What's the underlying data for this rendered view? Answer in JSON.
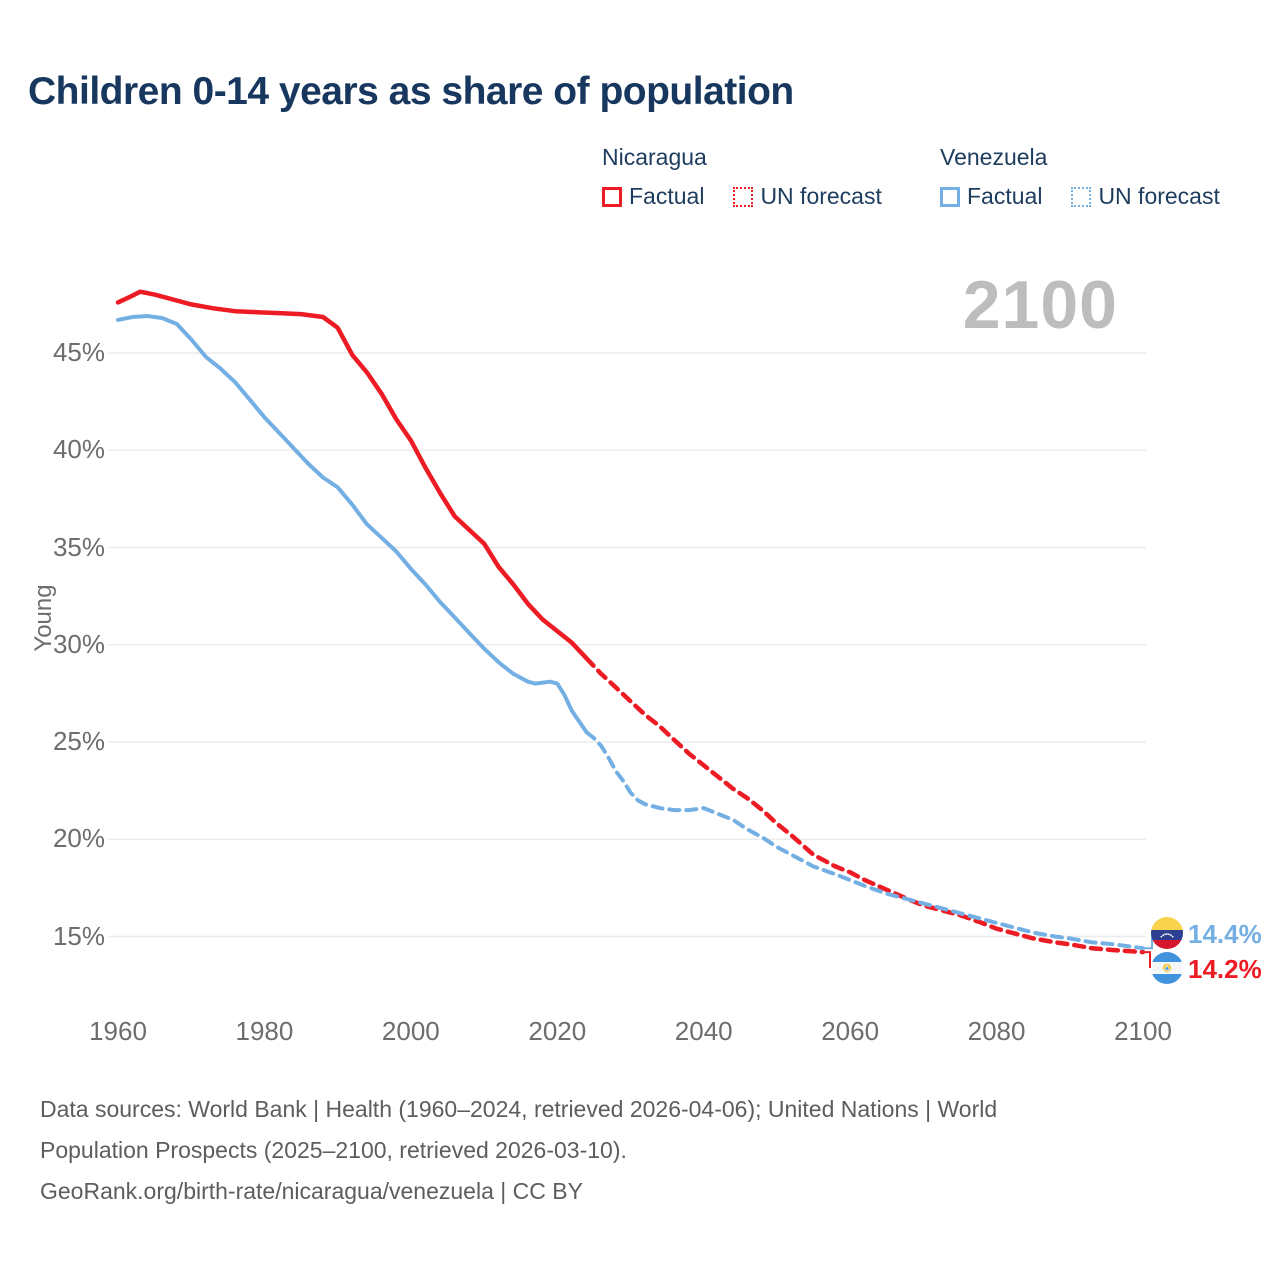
{
  "title": "Children 0-14 years as share of population",
  "watermark": "2100",
  "legend": {
    "groups": [
      {
        "name": "Nicaragua",
        "color": "#ed1c24",
        "factual_label": "Factual",
        "forecast_label": "UN forecast"
      },
      {
        "name": "Venezuela",
        "color": "#74afe4",
        "factual_label": "Factual",
        "forecast_label": "UN forecast"
      }
    ]
  },
  "axis": {
    "y_title": "Young"
  },
  "end_labels": [
    {
      "country": "Venezuela",
      "value": "14.4%",
      "color": "#74afe4",
      "flag_icon": "venezuela-flag-icon"
    },
    {
      "country": "Nicaragua",
      "value": "14.2%",
      "color": "#ed1c24",
      "flag_icon": "nicaragua-flag-icon"
    }
  ],
  "footer": {
    "line1": "Data sources: World Bank | Health (1960–2024, retrieved 2026-04-06); United Nations | World",
    "line2": "Population Prospects (2025–2100, retrieved 2026-03-10).",
    "line3": "GeoRank.org/birth-rate/nicaragua/venezuela | CC BY"
  },
  "chart_data": {
    "type": "line",
    "title": "Children 0-14 years as share of population",
    "xlabel": "",
    "ylabel": "Young",
    "xlim": [
      1960,
      2100
    ],
    "ylim_percent": [
      13,
      49
    ],
    "y_ticks": [
      45,
      40,
      35,
      30,
      25,
      20,
      15
    ],
    "x_ticks": [
      1960,
      1980,
      2000,
      2020,
      2040,
      2060,
      2080,
      2100
    ],
    "grid": "horizontal",
    "legend_position": "top-right",
    "colors": {
      "gridline": "#ececec",
      "axis_text": "#6d6d6d",
      "watermark": "#bdbdbd",
      "navy_text": "#1d3c5e"
    },
    "series": [
      {
        "name": "Nicaragua UN forecast",
        "style": "dashed",
        "color": "#ed1c24",
        "points": [
          [
            2024,
            29.3
          ],
          [
            2026,
            28.5
          ],
          [
            2028,
            27.8
          ],
          [
            2030,
            27.1
          ],
          [
            2032,
            26.4
          ],
          [
            2034,
            25.8
          ],
          [
            2036,
            25.1
          ],
          [
            2038,
            24.4
          ],
          [
            2040,
            23.8
          ],
          [
            2042,
            23.2
          ],
          [
            2044,
            22.6
          ],
          [
            2046,
            22.1
          ],
          [
            2048,
            21.5
          ],
          [
            2050,
            20.8
          ],
          [
            2052,
            20.2
          ],
          [
            2055,
            19.2
          ],
          [
            2058,
            18.6
          ],
          [
            2060,
            18.3
          ],
          [
            2062,
            17.9
          ],
          [
            2065,
            17.4
          ],
          [
            2068,
            16.9
          ],
          [
            2070,
            16.6
          ],
          [
            2072,
            16.4
          ],
          [
            2075,
            16.1
          ],
          [
            2078,
            15.7
          ],
          [
            2080,
            15.4
          ],
          [
            2082,
            15.2
          ],
          [
            2085,
            14.9
          ],
          [
            2088,
            14.7
          ],
          [
            2090,
            14.6
          ],
          [
            2093,
            14.4
          ],
          [
            2096,
            14.3
          ],
          [
            2100,
            14.2
          ]
        ]
      },
      {
        "name": "Venezuela UN forecast",
        "style": "dashed",
        "color": "#74afe4",
        "points": [
          [
            2024,
            25.5
          ],
          [
            2025,
            25.2
          ],
          [
            2026,
            24.8
          ],
          [
            2027,
            24.2
          ],
          [
            2028,
            23.5
          ],
          [
            2029,
            23.0
          ],
          [
            2030,
            22.4
          ],
          [
            2031,
            22.0
          ],
          [
            2032,
            21.8
          ],
          [
            2034,
            21.6
          ],
          [
            2036,
            21.5
          ],
          [
            2038,
            21.5
          ],
          [
            2040,
            21.6
          ],
          [
            2042,
            21.3
          ],
          [
            2044,
            21.0
          ],
          [
            2046,
            20.5
          ],
          [
            2048,
            20.1
          ],
          [
            2050,
            19.6
          ],
          [
            2052,
            19.2
          ],
          [
            2055,
            18.6
          ],
          [
            2058,
            18.2
          ],
          [
            2060,
            17.9
          ],
          [
            2062,
            17.6
          ],
          [
            2065,
            17.2
          ],
          [
            2068,
            16.9
          ],
          [
            2070,
            16.7
          ],
          [
            2072,
            16.5
          ],
          [
            2075,
            16.2
          ],
          [
            2078,
            15.9
          ],
          [
            2080,
            15.7
          ],
          [
            2082,
            15.5
          ],
          [
            2085,
            15.2
          ],
          [
            2088,
            15.0
          ],
          [
            2090,
            14.9
          ],
          [
            2093,
            14.7
          ],
          [
            2096,
            14.6
          ],
          [
            2100,
            14.4
          ]
        ]
      },
      {
        "name": "Venezuela Factual",
        "style": "solid",
        "color": "#74afe4",
        "points": [
          [
            1960,
            46.7
          ],
          [
            1962,
            46.85
          ],
          [
            1964,
            46.9
          ],
          [
            1966,
            46.8
          ],
          [
            1968,
            46.5
          ],
          [
            1970,
            45.7
          ],
          [
            1972,
            44.8
          ],
          [
            1974,
            44.2
          ],
          [
            1976,
            43.5
          ],
          [
            1978,
            42.6
          ],
          [
            1980,
            41.7
          ],
          [
            1982,
            40.9
          ],
          [
            1984,
            40.1
          ],
          [
            1986,
            39.3
          ],
          [
            1988,
            38.6
          ],
          [
            1990,
            38.1
          ],
          [
            1992,
            37.2
          ],
          [
            1994,
            36.2
          ],
          [
            1996,
            35.5
          ],
          [
            1998,
            34.8
          ],
          [
            2000,
            33.9
          ],
          [
            2002,
            33.1
          ],
          [
            2004,
            32.2
          ],
          [
            2006,
            31.4
          ],
          [
            2008,
            30.6
          ],
          [
            2010,
            29.8
          ],
          [
            2012,
            29.1
          ],
          [
            2014,
            28.5
          ],
          [
            2016,
            28.1
          ],
          [
            2017,
            28.0
          ],
          [
            2019,
            28.1
          ],
          [
            2020,
            28.0
          ],
          [
            2021,
            27.4
          ],
          [
            2022,
            26.6
          ],
          [
            2024,
            25.5
          ]
        ]
      },
      {
        "name": "Nicaragua Factual",
        "style": "solid",
        "color": "#ed1c24",
        "points": [
          [
            1960,
            47.6
          ],
          [
            1962,
            47.95
          ],
          [
            1963,
            48.15
          ],
          [
            1965,
            48.0
          ],
          [
            1967,
            47.8
          ],
          [
            1970,
            47.5
          ],
          [
            1973,
            47.3
          ],
          [
            1976,
            47.15
          ],
          [
            1979,
            47.1
          ],
          [
            1982,
            47.05
          ],
          [
            1985,
            47.0
          ],
          [
            1988,
            46.85
          ],
          [
            1990,
            46.3
          ],
          [
            1992,
            44.9
          ],
          [
            1994,
            44.0
          ],
          [
            1996,
            42.9
          ],
          [
            1998,
            41.6
          ],
          [
            2000,
            40.5
          ],
          [
            2002,
            39.1
          ],
          [
            2004,
            37.8
          ],
          [
            2006,
            36.6
          ],
          [
            2008,
            35.9
          ],
          [
            2010,
            35.2
          ],
          [
            2012,
            34.0
          ],
          [
            2014,
            33.1
          ],
          [
            2016,
            32.1
          ],
          [
            2018,
            31.3
          ],
          [
            2020,
            30.7
          ],
          [
            2022,
            30.1
          ],
          [
            2024,
            29.3
          ]
        ]
      }
    ],
    "end_values": {
      "Venezuela": 14.4,
      "Nicaragua": 14.2
    }
  }
}
